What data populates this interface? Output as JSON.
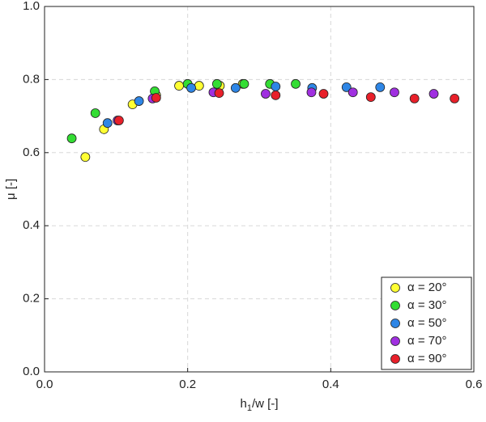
{
  "chart_data": {
    "type": "scatter",
    "x_label": [
      "h",
      "1",
      "/w [-]"
    ],
    "y_label": "μ [-]",
    "xlim": [
      0,
      0.6
    ],
    "ylim": [
      0,
      1
    ],
    "xticks": [
      {
        "value": 0,
        "label": "0.0"
      },
      {
        "value": 0.2,
        "label": "0.2"
      },
      {
        "value": 0.4,
        "label": "0.4"
      },
      {
        "value": 0.6,
        "label": "0.6"
      }
    ],
    "yticks": [
      {
        "value": 0,
        "label": "0.0"
      },
      {
        "value": 0.2,
        "label": "0.2"
      },
      {
        "value": 0.4,
        "label": "0.4"
      },
      {
        "value": 0.6,
        "label": "0.6"
      },
      {
        "value": 0.8,
        "label": "0.8"
      },
      {
        "value": 1,
        "label": "1.0"
      }
    ],
    "grid": true,
    "legend": "lower right",
    "series": [
      {
        "name": "α = 20°",
        "color": "#ffff33",
        "x": [
          0.057,
          0.083,
          0.123,
          0.156,
          0.188,
          0.216,
          0.245,
          0.277
        ],
        "values": [
          0.588,
          0.664,
          0.732,
          0.757,
          0.783,
          0.783,
          0.783,
          0.788
        ]
      },
      {
        "name": "α = 30°",
        "color": "#33dd33",
        "x": [
          0.038,
          0.071,
          0.154,
          0.2,
          0.241,
          0.279,
          0.315,
          0.351
        ],
        "values": [
          0.639,
          0.708,
          0.768,
          0.788,
          0.788,
          0.788,
          0.788,
          0.788
        ]
      },
      {
        "name": "α = 50°",
        "color": "#2e86e6",
        "x": [
          0.088,
          0.132,
          0.205,
          0.267,
          0.323,
          0.374,
          0.422,
          0.469
        ],
        "values": [
          0.681,
          0.741,
          0.777,
          0.777,
          0.781,
          0.777,
          0.779,
          0.779
        ]
      },
      {
        "name": "α = 70°",
        "color": "#a030e0",
        "x": [
          0.102,
          0.151,
          0.236,
          0.309,
          0.373,
          0.431,
          0.489,
          0.544
        ],
        "values": [
          0.688,
          0.748,
          0.765,
          0.761,
          0.765,
          0.765,
          0.765,
          0.761
        ]
      },
      {
        "name": "α = 90°",
        "color": "#e8202a",
        "x": [
          0.104,
          0.156,
          0.244,
          0.323,
          0.39,
          0.456,
          0.517,
          0.573
        ],
        "values": [
          0.688,
          0.75,
          0.763,
          0.757,
          0.761,
          0.752,
          0.748,
          0.748
        ]
      }
    ]
  }
}
